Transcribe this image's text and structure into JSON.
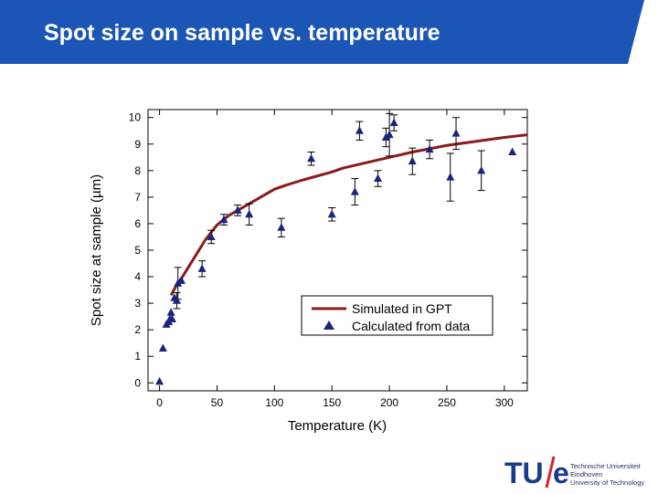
{
  "slide": {
    "title": "Spot size on sample vs. temperature",
    "accent_color": "#1b55b5"
  },
  "logo": {
    "mark_tu": "TU",
    "mark_e": "e",
    "line1": "Technische Universiteit",
    "line2": "Eindhoven",
    "line3": "University of Technology"
  },
  "chart_data": {
    "type": "line+scatter",
    "xlabel": "Temperature (K)",
    "ylabel": "Spot size at sample (µm)",
    "xlim": [
      -10,
      320
    ],
    "ylim": [
      -0.3,
      10.3
    ],
    "x_ticks": [
      0,
      50,
      100,
      150,
      200,
      250,
      300
    ],
    "y_ticks": [
      0,
      1,
      2,
      3,
      4,
      5,
      6,
      7,
      8,
      9,
      10
    ],
    "grid": false,
    "legend_position": "lower-right",
    "series": [
      {
        "name": "Simulated in GPT",
        "kind": "line",
        "color": "#8b1a1a",
        "x": [
          10,
          15,
          20,
          30,
          40,
          50,
          60,
          70,
          80,
          90,
          100,
          110,
          125,
          150,
          160,
          175,
          200,
          220,
          250,
          275,
          300,
          320
        ],
        "y": [
          3.3,
          3.7,
          4.0,
          4.7,
          5.4,
          5.95,
          6.3,
          6.55,
          6.8,
          7.05,
          7.3,
          7.45,
          7.65,
          7.95,
          8.1,
          8.25,
          8.5,
          8.7,
          8.95,
          9.1,
          9.25,
          9.35
        ]
      },
      {
        "name": "Calculated from data",
        "kind": "scatter",
        "marker": "triangle",
        "color": "#1a237e",
        "x": [
          0,
          3,
          6,
          8,
          9,
          10,
          11,
          13,
          15,
          16,
          19,
          37,
          45,
          56,
          68,
          78,
          106,
          132,
          150,
          170,
          174,
          190,
          197,
          200,
          204,
          220,
          235,
          253,
          258,
          280,
          307
        ],
        "y": [
          0.05,
          1.3,
          2.2,
          2.3,
          2.4,
          2.65,
          2.4,
          3.2,
          3.1,
          3.75,
          3.85,
          4.3,
          5.5,
          6.15,
          6.5,
          6.35,
          5.85,
          8.45,
          6.35,
          7.2,
          9.5,
          7.7,
          9.25,
          9.35,
          9.8,
          8.35,
          8.8,
          7.75,
          9.4,
          8.0,
          8.7
        ],
        "err": [
          0,
          0,
          0,
          0,
          0,
          0,
          0,
          0,
          0.3,
          0.6,
          0,
          0.3,
          0.25,
          0.2,
          0.2,
          0.4,
          0.35,
          0.25,
          0.25,
          0.5,
          0.35,
          0.3,
          0.35,
          0.8,
          0.3,
          0.5,
          0.35,
          0.9,
          0.6,
          0.75,
          0
        ]
      }
    ]
  }
}
